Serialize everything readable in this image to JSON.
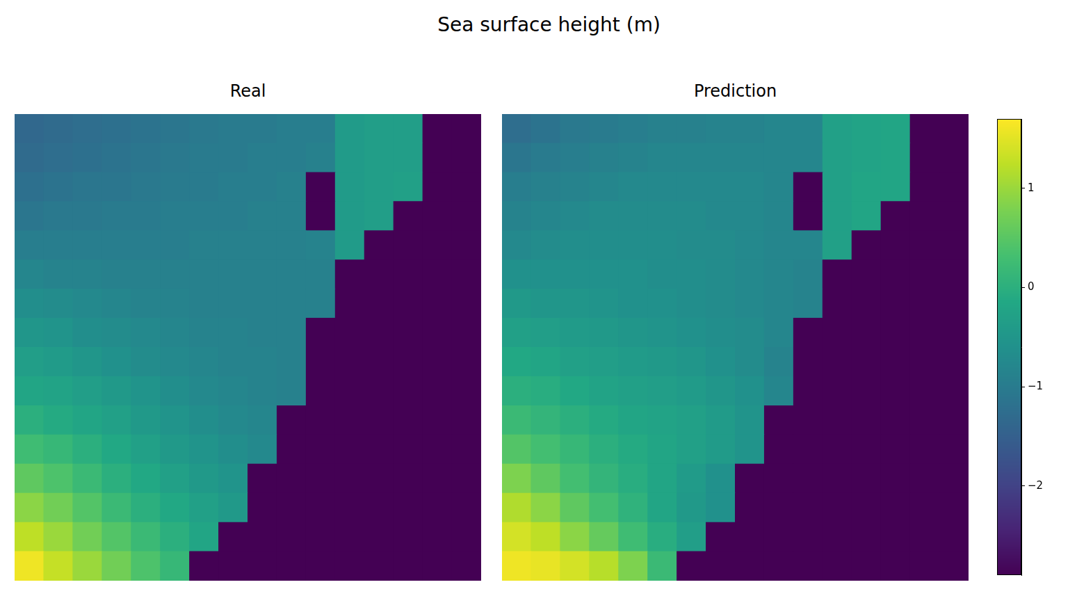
{
  "chart_data": {
    "type": "heatmap",
    "title": "Sea surface height (m)",
    "tick_labels": false,
    "panels": [
      {
        "title": "Real",
        "cells": [
          [
            -1.35,
            -1.3,
            -1.25,
            -1.2,
            -1.15,
            -1.1,
            -1.05,
            -1.0,
            -1.0,
            -0.95,
            -0.95,
            -0.4,
            -0.35,
            -0.35,
            -2.9,
            -2.9
          ],
          [
            -1.3,
            -1.25,
            -1.2,
            -1.15,
            -1.1,
            -1.05,
            -1.0,
            -1.0,
            -0.95,
            -0.95,
            -0.9,
            -0.4,
            -0.35,
            -0.35,
            -2.9,
            -2.9
          ],
          [
            -1.2,
            -1.15,
            -1.1,
            -1.1,
            -1.05,
            -1.0,
            -1.0,
            -0.95,
            -0.95,
            -0.9,
            -2.9,
            -0.4,
            -0.35,
            -0.3,
            -2.9,
            -2.9
          ],
          [
            -1.1,
            -1.05,
            -1.05,
            -1.0,
            -1.0,
            -0.95,
            -0.95,
            -0.95,
            -0.9,
            -0.9,
            -2.9,
            -0.4,
            -0.35,
            -2.9,
            -2.9,
            -2.9
          ],
          [
            -0.95,
            -0.95,
            -0.95,
            -0.95,
            -0.95,
            -0.95,
            -0.9,
            -0.9,
            -0.9,
            -0.9,
            -0.85,
            -0.4,
            -2.9,
            -2.9,
            -2.9,
            -2.9
          ],
          [
            -0.8,
            -0.85,
            -0.85,
            -0.9,
            -0.9,
            -0.9,
            -0.9,
            -0.9,
            -0.9,
            -0.9,
            -0.9,
            -2.9,
            -2.9,
            -2.9,
            -2.9,
            -2.9
          ],
          [
            -0.65,
            -0.7,
            -0.75,
            -0.8,
            -0.85,
            -0.85,
            -0.9,
            -0.9,
            -0.9,
            -0.9,
            -0.9,
            -2.9,
            -2.9,
            -2.9,
            -2.9,
            -2.9
          ],
          [
            -0.5,
            -0.55,
            -0.65,
            -0.7,
            -0.75,
            -0.8,
            -0.85,
            -0.85,
            -0.9,
            -0.9,
            -2.9,
            -2.9,
            -2.9,
            -2.9,
            -2.9,
            -2.9
          ],
          [
            -0.35,
            -0.4,
            -0.5,
            -0.6,
            -0.7,
            -0.75,
            -0.8,
            -0.85,
            -0.85,
            -0.9,
            -2.9,
            -2.9,
            -2.9,
            -2.9,
            -2.9,
            -2.9
          ],
          [
            -0.2,
            -0.25,
            -0.35,
            -0.45,
            -0.55,
            -0.65,
            -0.75,
            -0.8,
            -0.85,
            -0.9,
            -2.9,
            -2.9,
            -2.9,
            -2.9,
            -2.9,
            -2.9
          ],
          [
            0,
            -0.1,
            -0.2,
            -0.3,
            -0.45,
            -0.55,
            -0.65,
            -0.75,
            -0.8,
            -2.9,
            -2.9,
            -2.9,
            -2.9,
            -2.9,
            -2.9,
            -2.9
          ],
          [
            0.25,
            0.15,
            0,
            -0.15,
            -0.3,
            -0.45,
            -0.55,
            -0.65,
            -0.75,
            -2.9,
            -2.9,
            -2.9,
            -2.9,
            -2.9,
            -2.9,
            -2.9
          ],
          [
            0.55,
            0.4,
            0.2,
            0,
            -0.15,
            -0.3,
            -0.45,
            -0.55,
            -2.9,
            -2.9,
            -2.9,
            -2.9,
            -2.9,
            -2.9,
            -2.9,
            -2.9
          ],
          [
            0.9,
            0.7,
            0.45,
            0.2,
            0,
            -0.15,
            -0.3,
            -0.45,
            -2.9,
            -2.9,
            -2.9,
            -2.9,
            -2.9,
            -2.9,
            -2.9,
            -2.9
          ],
          [
            1.25,
            1.0,
            0.7,
            0.45,
            0.2,
            0,
            -0.2,
            -2.9,
            -2.9,
            -2.9,
            -2.9,
            -2.9,
            -2.9,
            -2.9,
            -2.9,
            -2.9
          ],
          [
            1.6,
            1.3,
            1.0,
            0.7,
            0.4,
            0.15,
            -2.9,
            -2.9,
            -2.9,
            -2.9,
            -2.9,
            -2.9,
            -2.9,
            -2.9,
            -2.9,
            -2.9
          ]
        ]
      },
      {
        "title": "Prediction",
        "cells": [
          [
            -1.25,
            -1.15,
            -1.05,
            -1.0,
            -0.95,
            -0.9,
            -0.9,
            -0.85,
            -0.85,
            -0.8,
            -0.8,
            -0.3,
            -0.25,
            -0.2,
            -2.9,
            -2.9
          ],
          [
            -1.1,
            -1.0,
            -0.95,
            -0.9,
            -0.85,
            -0.8,
            -0.8,
            -0.8,
            -0.8,
            -0.8,
            -0.8,
            -0.3,
            -0.25,
            -0.2,
            -2.9,
            -2.9
          ],
          [
            -0.95,
            -0.9,
            -0.85,
            -0.8,
            -0.75,
            -0.75,
            -0.75,
            -0.75,
            -0.75,
            -0.8,
            -2.9,
            -0.3,
            -0.2,
            -0.2,
            -2.9,
            -2.9
          ],
          [
            -0.85,
            -0.8,
            -0.75,
            -0.7,
            -0.7,
            -0.7,
            -0.7,
            -0.75,
            -0.75,
            -0.8,
            -2.9,
            -0.3,
            -0.2,
            -2.9,
            -2.9,
            -2.9
          ],
          [
            -0.75,
            -0.7,
            -0.65,
            -0.65,
            -0.65,
            -0.65,
            -0.7,
            -0.7,
            -0.75,
            -0.8,
            -0.8,
            -0.3,
            -2.9,
            -2.9,
            -2.9,
            -2.9
          ],
          [
            -0.6,
            -0.6,
            -0.6,
            -0.6,
            -0.6,
            -0.65,
            -0.65,
            -0.7,
            -0.75,
            -0.8,
            -0.85,
            -2.9,
            -2.9,
            -2.9,
            -2.9,
            -2.9
          ],
          [
            -0.45,
            -0.5,
            -0.5,
            -0.55,
            -0.6,
            -0.6,
            -0.65,
            -0.7,
            -0.75,
            -0.8,
            -0.85,
            -2.9,
            -2.9,
            -2.9,
            -2.9,
            -2.9
          ],
          [
            -0.3,
            -0.35,
            -0.4,
            -0.45,
            -0.5,
            -0.55,
            -0.6,
            -0.65,
            -0.7,
            -0.8,
            -2.9,
            -2.9,
            -2.9,
            -2.9,
            -2.9,
            -2.9
          ],
          [
            -0.15,
            -0.2,
            -0.3,
            -0.35,
            -0.4,
            -0.45,
            -0.5,
            -0.6,
            -0.7,
            -0.85,
            -2.9,
            -2.9,
            -2.9,
            -2.9,
            -2.9,
            -2.9
          ],
          [
            0,
            -0.05,
            -0.15,
            -0.25,
            -0.3,
            -0.35,
            -0.4,
            -0.5,
            -0.6,
            -0.8,
            -2.9,
            -2.9,
            -2.9,
            -2.9,
            -2.9,
            -2.9
          ],
          [
            0.2,
            0.1,
            0,
            -0.1,
            -0.2,
            -0.25,
            -0.3,
            -0.4,
            -0.55,
            -2.9,
            -2.9,
            -2.9,
            -2.9,
            -2.9,
            -2.9,
            -2.9
          ],
          [
            0.45,
            0.3,
            0.15,
            0,
            -0.1,
            -0.2,
            -0.3,
            -0.4,
            -0.55,
            -2.9,
            -2.9,
            -2.9,
            -2.9,
            -2.9,
            -2.9,
            -2.9
          ],
          [
            0.8,
            0.55,
            0.3,
            0.1,
            -0.05,
            -0.2,
            -0.4,
            -0.6,
            -2.9,
            -2.9,
            -2.9,
            -2.9,
            -2.9,
            -2.9,
            -2.9,
            -2.9
          ],
          [
            1.15,
            0.9,
            0.55,
            0.3,
            0.05,
            -0.2,
            -0.45,
            -0.6,
            -2.9,
            -2.9,
            -2.9,
            -2.9,
            -2.9,
            -2.9,
            -2.9,
            -2.9
          ],
          [
            1.4,
            1.25,
            0.9,
            0.6,
            0.25,
            -0.05,
            -0.35,
            -2.9,
            -2.9,
            -2.9,
            -2.9,
            -2.9,
            -2.9,
            -2.9,
            -2.9,
            -2.9
          ],
          [
            1.6,
            1.55,
            1.4,
            1.2,
            0.8,
            0.2,
            -2.9,
            -2.9,
            -2.9,
            -2.9,
            -2.9,
            -2.9,
            -2.9,
            -2.9,
            -2.9,
            -2.9
          ]
        ]
      }
    ],
    "colorbar": {
      "lim": [
        -2.9,
        1.7
      ],
      "ticks": [
        {
          "value": -2,
          "label": "−2"
        },
        {
          "value": -1,
          "label": "−1"
        },
        0,
        1
      ]
    }
  }
}
